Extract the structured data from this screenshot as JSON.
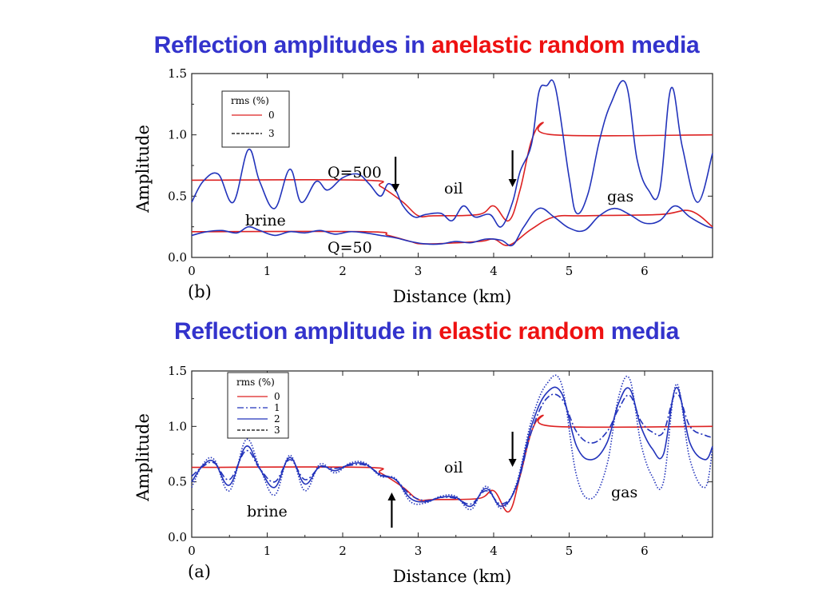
{
  "slide": {
    "title_top": {
      "part1": "Reflection amplitudes in ",
      "part2": "anelastic random",
      "part3": " media"
    },
    "title_bottom": {
      "part1": "Reflection amplitude in ",
      "part2": "elastic random",
      "part3": " media"
    },
    "colors": {
      "title_blue": "#3333cc",
      "title_red": "#ee1111"
    }
  },
  "chart_data": [
    {
      "type": "line",
      "panel_label": "(b)",
      "xlabel": "Distance (km)",
      "ylabel": "Amplitude",
      "xlim": [
        0,
        6.9
      ],
      "ylim": [
        0,
        1.5
      ],
      "xticks": [
        "0",
        "1",
        "2",
        "3",
        "4",
        "5",
        "6"
      ],
      "yticks": [
        "0.0",
        "0.5",
        "1.0",
        "1.5"
      ],
      "grid": false,
      "legend": {
        "position": "top-left",
        "title": "rms  (%)",
        "entries": [
          {
            "label": "0",
            "style": "solid",
            "color": "#dd2222"
          },
          {
            "label": "3",
            "style": "dashed",
            "color": "#000000"
          }
        ]
      },
      "annotations": [
        "Q=500",
        "Q=50",
        "oil",
        "gas",
        "brine"
      ],
      "arrows": [
        {
          "x": 2.7,
          "direction": "down"
        },
        {
          "x": 4.25,
          "direction": "down"
        }
      ],
      "series": [
        {
          "name": "0",
          "color": "#dd2222",
          "style": "solid",
          "x": [
            0,
            2.3,
            2.5,
            2.8,
            3.0,
            3.2,
            3.8,
            4.0,
            4.2,
            4.35,
            4.5,
            4.65,
            4.8,
            6.9
          ],
          "y": [
            0.63,
            0.63,
            0.58,
            0.45,
            0.34,
            0.34,
            0.35,
            0.42,
            0.3,
            0.55,
            0.95,
            1.1,
            1.0,
            1.0
          ]
        },
        {
          "name": "Q=500",
          "color": "#2233bb",
          "style": "solid",
          "x": [
            0,
            0.15,
            0.35,
            0.55,
            0.75,
            0.9,
            1.1,
            1.3,
            1.45,
            1.65,
            1.8,
            2.0,
            2.2,
            2.35,
            2.5,
            2.6,
            2.7,
            2.8,
            2.95,
            3.1,
            3.3,
            3.45,
            3.6,
            3.75,
            3.95,
            4.1,
            4.25,
            4.35,
            4.5,
            4.6,
            4.7,
            4.82,
            5.0,
            5.1,
            5.25,
            5.4,
            5.55,
            5.75,
            5.9,
            6.05,
            6.2,
            6.35,
            6.5,
            6.7,
            6.9
          ],
          "y": [
            0.45,
            0.62,
            0.68,
            0.45,
            0.88,
            0.62,
            0.4,
            0.72,
            0.45,
            0.62,
            0.55,
            0.65,
            0.68,
            0.6,
            0.5,
            0.6,
            0.55,
            0.42,
            0.33,
            0.35,
            0.36,
            0.3,
            0.42,
            0.33,
            0.35,
            0.25,
            0.45,
            0.7,
            0.92,
            1.35,
            1.4,
            1.38,
            0.65,
            0.36,
            0.52,
            0.95,
            1.25,
            1.42,
            0.8,
            0.55,
            0.55,
            1.38,
            0.9,
            0.45,
            0.85
          ]
        },
        {
          "name": "0 (Q=50)",
          "color": "#dd2222",
          "style": "solid",
          "x": [
            0,
            2.3,
            2.6,
            2.9,
            3.1,
            3.8,
            4.0,
            4.2,
            4.5,
            4.8,
            5.2,
            6.2,
            6.6,
            6.9
          ],
          "y": [
            0.21,
            0.21,
            0.18,
            0.13,
            0.11,
            0.13,
            0.15,
            0.1,
            0.23,
            0.33,
            0.34,
            0.35,
            0.38,
            0.25
          ]
        },
        {
          "name": "Q=50",
          "color": "#2233bb",
          "style": "solid",
          "x": [
            0,
            0.2,
            0.4,
            0.6,
            0.75,
            0.9,
            1.1,
            1.3,
            1.5,
            1.7,
            1.9,
            2.1,
            2.3,
            2.5,
            2.7,
            2.9,
            3.1,
            3.3,
            3.5,
            3.7,
            3.9,
            4.1,
            4.25,
            4.4,
            4.6,
            4.8,
            5.0,
            5.2,
            5.4,
            5.6,
            5.8,
            6.0,
            6.2,
            6.4,
            6.6,
            6.8,
            6.9
          ],
          "y": [
            0.18,
            0.21,
            0.22,
            0.2,
            0.25,
            0.22,
            0.18,
            0.21,
            0.2,
            0.22,
            0.19,
            0.21,
            0.2,
            0.18,
            0.16,
            0.13,
            0.11,
            0.11,
            0.13,
            0.12,
            0.15,
            0.14,
            0.1,
            0.25,
            0.4,
            0.33,
            0.24,
            0.22,
            0.34,
            0.4,
            0.35,
            0.28,
            0.3,
            0.42,
            0.33,
            0.26,
            0.24
          ]
        }
      ]
    },
    {
      "type": "line",
      "panel_label": "(a)",
      "xlabel": "Distance (km)",
      "ylabel": "Amplitude",
      "xlim": [
        0,
        6.9
      ],
      "ylim": [
        0,
        1.5
      ],
      "xticks": [
        "0",
        "1",
        "2",
        "3",
        "4",
        "5",
        "6"
      ],
      "yticks": [
        "0.0",
        "0.5",
        "1.0",
        "1.5"
      ],
      "grid": false,
      "legend": {
        "position": "top-left",
        "title": "rms  (%)",
        "entries": [
          {
            "label": "0",
            "style": "solid",
            "color": "#dd2222"
          },
          {
            "label": "1",
            "style": "dashdot",
            "color": "#2233bb"
          },
          {
            "label": "2",
            "style": "solid",
            "color": "#2233bb"
          },
          {
            "label": "3",
            "style": "dashed",
            "color": "#000000"
          }
        ]
      },
      "annotations": [
        "oil",
        "gas",
        "brine"
      ],
      "arrows": [
        {
          "x": 2.65,
          "direction": "up"
        },
        {
          "x": 4.25,
          "direction": "down"
        }
      ],
      "series": [
        {
          "name": "0",
          "color": "#dd2222",
          "style": "solid",
          "x": [
            0,
            2.3,
            2.5,
            2.8,
            3.0,
            3.2,
            3.8,
            4.0,
            4.2,
            4.35,
            4.5,
            4.65,
            4.8,
            6.9
          ],
          "y": [
            0.63,
            0.63,
            0.58,
            0.45,
            0.34,
            0.34,
            0.35,
            0.42,
            0.23,
            0.55,
            0.95,
            1.1,
            1.0,
            1.0
          ]
        },
        {
          "name": "1",
          "color": "#2233bb",
          "style": "dashdot",
          "x": [
            0,
            0.15,
            0.3,
            0.5,
            0.72,
            0.9,
            1.1,
            1.3,
            1.5,
            1.7,
            1.9,
            2.1,
            2.3,
            2.5,
            2.7,
            2.9,
            3.1,
            3.3,
            3.5,
            3.7,
            3.9,
            4.1,
            4.3,
            4.5,
            4.7,
            4.9,
            5.1,
            5.3,
            5.5,
            5.65,
            5.8,
            5.95,
            6.1,
            6.25,
            6.42,
            6.6,
            6.8,
            6.9
          ],
          "y": [
            0.55,
            0.64,
            0.67,
            0.52,
            0.78,
            0.62,
            0.5,
            0.7,
            0.52,
            0.63,
            0.62,
            0.65,
            0.65,
            0.57,
            0.52,
            0.38,
            0.33,
            0.36,
            0.35,
            0.3,
            0.42,
            0.3,
            0.45,
            0.95,
            1.25,
            1.25,
            0.95,
            0.85,
            0.95,
            1.15,
            1.28,
            1.05,
            0.95,
            0.95,
            1.3,
            1.0,
            0.92,
            0.9
          ]
        },
        {
          "name": "2",
          "color": "#2233bb",
          "style": "solid",
          "x": [
            0,
            0.15,
            0.3,
            0.5,
            0.72,
            0.9,
            1.1,
            1.3,
            1.5,
            1.7,
            1.9,
            2.1,
            2.3,
            2.5,
            2.7,
            2.9,
            3.1,
            3.3,
            3.5,
            3.7,
            3.9,
            4.1,
            4.3,
            4.5,
            4.7,
            4.9,
            5.1,
            5.3,
            5.5,
            5.65,
            5.8,
            5.95,
            6.1,
            6.25,
            6.42,
            6.6,
            6.8,
            6.9
          ],
          "y": [
            0.5,
            0.65,
            0.68,
            0.47,
            0.82,
            0.62,
            0.45,
            0.72,
            0.48,
            0.64,
            0.6,
            0.66,
            0.66,
            0.56,
            0.52,
            0.35,
            0.32,
            0.36,
            0.36,
            0.28,
            0.44,
            0.28,
            0.46,
            1.0,
            1.3,
            1.3,
            0.82,
            0.7,
            0.85,
            1.2,
            1.34,
            1.0,
            0.8,
            0.75,
            1.35,
            0.85,
            0.7,
            0.82
          ]
        },
        {
          "name": "3",
          "color": "#2233bb",
          "style": "dotted",
          "x": [
            0,
            0.15,
            0.3,
            0.5,
            0.72,
            0.9,
            1.1,
            1.3,
            1.5,
            1.7,
            1.9,
            2.1,
            2.3,
            2.5,
            2.7,
            2.9,
            3.1,
            3.3,
            3.5,
            3.7,
            3.9,
            4.1,
            4.3,
            4.5,
            4.7,
            4.9,
            5.1,
            5.3,
            5.5,
            5.65,
            5.8,
            5.95,
            6.1,
            6.25,
            6.42,
            6.6,
            6.8,
            6.9
          ],
          "y": [
            0.45,
            0.66,
            0.7,
            0.42,
            0.88,
            0.63,
            0.38,
            0.74,
            0.42,
            0.66,
            0.58,
            0.67,
            0.67,
            0.55,
            0.53,
            0.32,
            0.31,
            0.37,
            0.37,
            0.25,
            0.46,
            0.26,
            0.48,
            1.05,
            1.38,
            1.38,
            0.55,
            0.35,
            0.65,
            1.25,
            1.43,
            0.85,
            0.55,
            0.5,
            1.38,
            0.7,
            0.45,
            0.8
          ]
        }
      ]
    }
  ]
}
